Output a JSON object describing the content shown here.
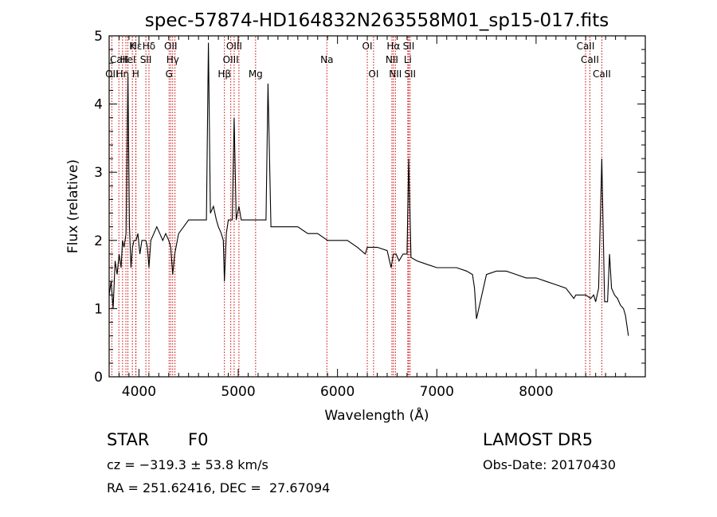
{
  "chart_data": {
    "type": "line",
    "title": "spec-57874-HD164832N263558M01_sp15-017.fits",
    "xlabel": "Wavelength (Å)",
    "ylabel": "Flux (relative)",
    "xlim": [
      3700,
      9100
    ],
    "ylim": [
      0,
      5
    ],
    "xticks": [
      4000,
      5000,
      6000,
      7000,
      8000
    ],
    "yticks": [
      0,
      1,
      2,
      3,
      4,
      5
    ],
    "grid": false,
    "line_color": "#000000",
    "marker_color": "#cc0000",
    "series": [
      {
        "x": [
          3700,
          3720,
          3740,
          3760,
          3780,
          3800,
          3820,
          3835,
          3850,
          3870,
          3889,
          3905,
          3920,
          3935,
          3950,
          3970,
          3990,
          4010,
          4030,
          4050,
          4070,
          4085,
          4101,
          4120,
          4150,
          4180,
          4210,
          4240,
          4270,
          4300,
          4320,
          4340,
          4360,
          4400,
          4450,
          4500,
          4550,
          4600,
          4650,
          4680,
          4700,
          4720,
          4750,
          4780,
          4800,
          4830,
          4850,
          4861,
          4880,
          4900,
          4940,
          4959,
          4980,
          5007,
          5030,
          5060,
          5100,
          5150,
          5200,
          5250,
          5280,
          5300,
          5330,
          5400,
          5500,
          5600,
          5700,
          5800,
          5900,
          6000,
          6100,
          6200,
          6280,
          6300,
          6350,
          6400,
          6500,
          6540,
          6563,
          6590,
          6620,
          6660,
          6700,
          6717,
          6740,
          6800,
          6900,
          7000,
          7100,
          7200,
          7300,
          7360,
          7380,
          7400,
          7500,
          7600,
          7700,
          7800,
          7900,
          8000,
          8100,
          8200,
          8300,
          8380,
          8400,
          8450,
          8500,
          8550,
          8580,
          8600,
          8630,
          8662,
          8690,
          8720,
          8740,
          8760,
          8790,
          8820,
          8850,
          8880,
          8900,
          8930
        ],
        "y": [
          1.2,
          1.4,
          1.0,
          1.7,
          1.5,
          1.8,
          1.6,
          2.0,
          1.9,
          2.1,
          4.4,
          2.2,
          1.6,
          1.9,
          2.0,
          2.0,
          2.1,
          1.8,
          2.0,
          2.0,
          2.0,
          1.9,
          1.6,
          2.0,
          2.1,
          2.2,
          2.1,
          2.0,
          2.1,
          2.0,
          1.9,
          1.5,
          1.8,
          2.1,
          2.2,
          2.3,
          2.3,
          2.3,
          2.3,
          2.3,
          4.9,
          2.4,
          2.5,
          2.3,
          2.2,
          2.1,
          2.0,
          1.4,
          2.1,
          2.3,
          2.3,
          3.8,
          2.3,
          2.5,
          2.3,
          2.3,
          2.3,
          2.3,
          2.3,
          2.3,
          2.3,
          4.3,
          2.2,
          2.2,
          2.2,
          2.2,
          2.1,
          2.1,
          2.0,
          2.0,
          2.0,
          1.9,
          1.8,
          1.9,
          1.9,
          1.9,
          1.85,
          1.6,
          1.8,
          1.8,
          1.7,
          1.8,
          1.8,
          3.2,
          1.75,
          1.7,
          1.65,
          1.6,
          1.6,
          1.6,
          1.55,
          1.5,
          1.3,
          0.85,
          1.5,
          1.55,
          1.55,
          1.5,
          1.45,
          1.45,
          1.4,
          1.35,
          1.3,
          1.15,
          1.2,
          1.2,
          1.2,
          1.15,
          1.2,
          1.1,
          1.3,
          3.2,
          1.1,
          1.1,
          1.8,
          1.3,
          1.2,
          1.15,
          1.05,
          1.0,
          0.9,
          0.6
        ]
      }
    ],
    "annotations": {
      "row1": [
        {
          "text": "Hε",
          "x": 3970
        },
        {
          "text": "K",
          "x": 3934
        },
        {
          "text": "Hδ",
          "x": 4101
        },
        {
          "text": "OII",
          "x": 4320
        },
        {
          "text": "OIII",
          "x": 4959
        },
        {
          "text": "OI",
          "x": 6300
        },
        {
          "text": "Hα",
          "x": 6563
        },
        {
          "text": "SII",
          "x": 6717
        },
        {
          "text": "CaII",
          "x": 8498
        }
      ],
      "row2": [
        {
          "text": "CaII",
          "x": 3800
        },
        {
          "text": "HeI",
          "x": 3888
        },
        {
          "text": "SII",
          "x": 4070
        },
        {
          "text": "Hγ",
          "x": 4340
        },
        {
          "text": "OIII",
          "x": 4925
        },
        {
          "text": "Na",
          "x": 5893
        },
        {
          "text": "NII",
          "x": 6548
        },
        {
          "text": "Li",
          "x": 6708
        },
        {
          "text": "CaII",
          "x": 8542
        }
      ],
      "row3": [
        {
          "text": "OII",
          "x": 3727
        },
        {
          "text": "Hη",
          "x": 3835
        },
        {
          "text": "H",
          "x": 3968
        },
        {
          "text": "G",
          "x": 4304
        },
        {
          "text": "Hβ",
          "x": 4861
        },
        {
          "text": "Mg",
          "x": 5175
        },
        {
          "text": "OI",
          "x": 6363
        },
        {
          "text": "NII",
          "x": 6583
        },
        {
          "text": "SII",
          "x": 6731
        },
        {
          "text": "CaII",
          "x": 8662
        }
      ]
    },
    "marker_lines": [
      3727,
      3798,
      3835,
      3869,
      3889,
      3934,
      3968,
      3970,
      4070,
      4101,
      4304,
      4320,
      4340,
      4363,
      4861,
      4925,
      4959,
      5007,
      5175,
      5893,
      6300,
      6363,
      6548,
      6563,
      6583,
      6708,
      6717,
      6731,
      8498,
      8542,
      8662
    ]
  },
  "info": {
    "class_label": "STAR",
    "subclass": "F0",
    "velocity": "cz = −319.3 ± 53.8 km/s",
    "coords": "RA = 251.62416, DEC =  27.67094",
    "survey": "LAMOST DR5",
    "obs_date": "Obs-Date: 20170430"
  }
}
